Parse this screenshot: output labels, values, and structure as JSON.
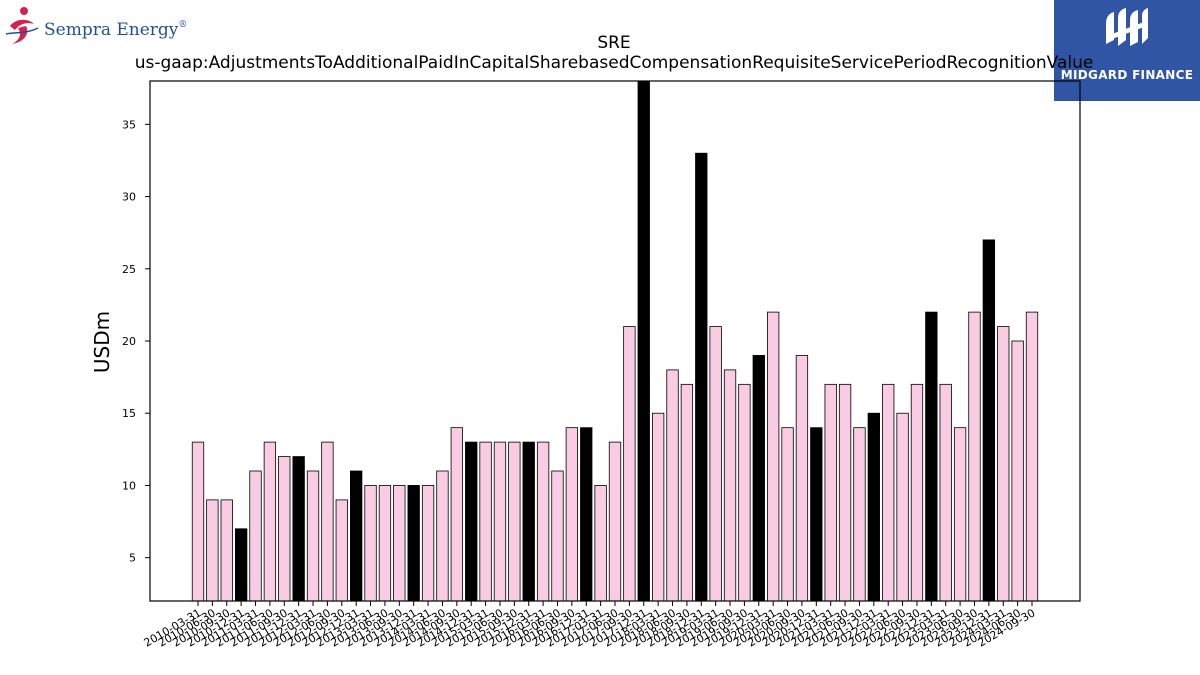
{
  "branding": {
    "left_logo_text": "Sempra Energy",
    "left_logo_mark": "®",
    "right_logo_text": "MIDGARD FINANCE"
  },
  "chart_data": {
    "type": "bar",
    "title": "SRE",
    "subtitle": "us-gaap:AdjustmentsToAdditionalPaidInCapitalSharebasedCompensationRequisiteServicePeriodRecognitionValue",
    "xlabel": "",
    "ylabel": "USDm",
    "ylim": [
      2,
      38
    ],
    "yticks": [
      5,
      10,
      15,
      20,
      25,
      30,
      35
    ],
    "grid": false,
    "colors": {
      "quarter": "#f9cce3",
      "year_end": "#000000",
      "edge": "#000000"
    },
    "categories": [
      "2010-03-31",
      "2010-06-30",
      "2010-09-30",
      "2010-12-31",
      "2011-03-31",
      "2011-06-30",
      "2011-09-30",
      "2011-12-31",
      "2012-03-31",
      "2012-06-30",
      "2012-09-30",
      "2012-12-31",
      "2013-03-31",
      "2013-06-30",
      "2013-09-30",
      "2013-12-31",
      "2014-03-31",
      "2014-06-30",
      "2014-09-30",
      "2014-12-31",
      "2015-03-31",
      "2015-06-30",
      "2015-09-30",
      "2015-12-31",
      "2016-03-31",
      "2016-06-30",
      "2016-09-30",
      "2016-12-31",
      "2017-03-31",
      "2017-06-30",
      "2017-09-30",
      "2017-12-31",
      "2018-03-31",
      "2018-06-30",
      "2018-09-30",
      "2018-12-31",
      "2019-03-31",
      "2019-06-30",
      "2019-09-30",
      "2019-12-31",
      "2020-03-31",
      "2020-06-30",
      "2020-09-30",
      "2020-12-31",
      "2021-03-31",
      "2021-06-30",
      "2021-09-30",
      "2021-12-31",
      "2022-03-31",
      "2022-06-30",
      "2022-09-30",
      "2022-12-31",
      "2023-03-31",
      "2023-06-30",
      "2023-09-30",
      "2023-12-31",
      "2024-03-31",
      "2024-06-30",
      "2024-09-30"
    ],
    "values": [
      13,
      9,
      9,
      7,
      11,
      13,
      12,
      12,
      11,
      13,
      9,
      11,
      10,
      10,
      10,
      10,
      10,
      11,
      14,
      13,
      13,
      13,
      13,
      13,
      13,
      11,
      14,
      14,
      10,
      13,
      21,
      38,
      15,
      18,
      17,
      33,
      21,
      18,
      17,
      19,
      22,
      14,
      19,
      14,
      17,
      17,
      14,
      15,
      17,
      15,
      17,
      22,
      17,
      14,
      22,
      27,
      21,
      20,
      22
    ],
    "year_end": [
      false,
      false,
      false,
      true,
      false,
      false,
      false,
      true,
      false,
      false,
      false,
      true,
      false,
      false,
      false,
      true,
      false,
      false,
      false,
      true,
      false,
      false,
      false,
      true,
      false,
      false,
      false,
      true,
      false,
      false,
      false,
      true,
      false,
      false,
      false,
      true,
      false,
      false,
      false,
      true,
      false,
      false,
      false,
      true,
      false,
      false,
      false,
      true,
      false,
      false,
      false,
      true,
      false,
      false,
      false,
      true,
      false,
      false,
      false
    ]
  }
}
